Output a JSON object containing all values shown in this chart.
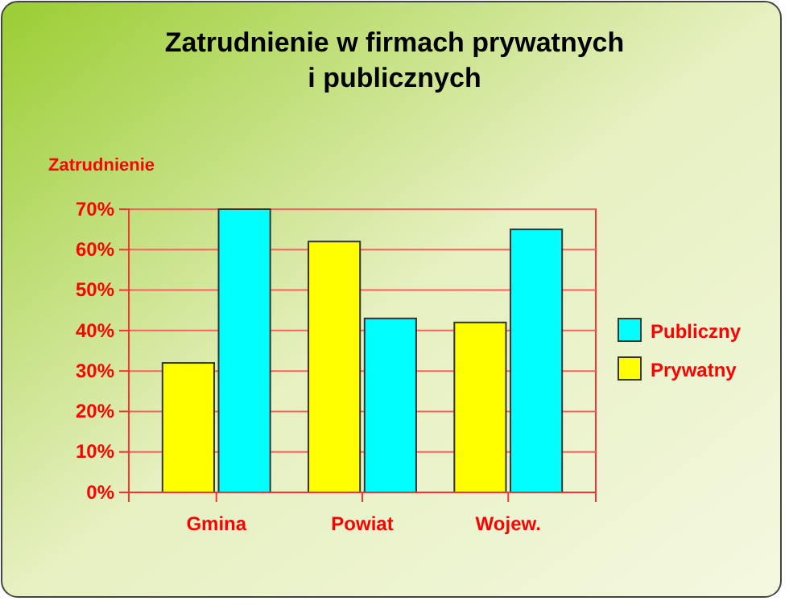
{
  "chart_data": {
    "type": "bar",
    "title": "Zatrudnienie w firmach prywatnych\ni publicznych",
    "ylabel": "Zatrudnienie",
    "categories": [
      "Gmina",
      "Powiat",
      "Wojew."
    ],
    "series": [
      {
        "name": "Prywatny",
        "color": "#ffff00",
        "values": [
          32,
          62,
          42
        ]
      },
      {
        "name": "Publiczny",
        "color": "#00ffff",
        "values": [
          70,
          43,
          65
        ]
      }
    ],
    "ylim": [
      0,
      70
    ],
    "yticks": [
      {
        "value": 0,
        "label": "0%"
      },
      {
        "value": 10,
        "label": "10%"
      },
      {
        "value": 20,
        "label": "20%"
      },
      {
        "value": 30,
        "label": "30%"
      },
      {
        "value": 40,
        "label": "40%"
      },
      {
        "value": 50,
        "label": "50%"
      },
      {
        "value": 60,
        "label": "60%"
      },
      {
        "value": 70,
        "label": "70%"
      }
    ],
    "grid": "y",
    "legend": "right"
  }
}
